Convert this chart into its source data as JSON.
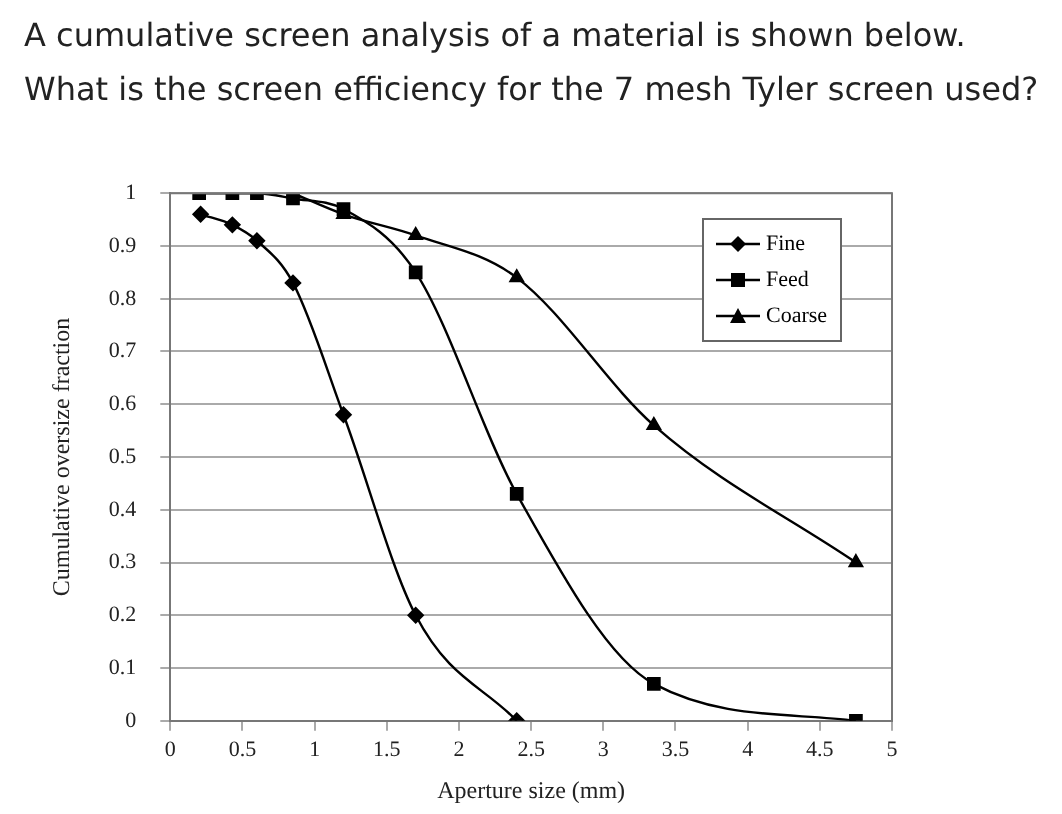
{
  "chart_data": {
    "type": "line",
    "title": "A cumulative screen analysis of a material is shown below. What is the screen efficiency for the 7 mesh Tyler screen used?",
    "xlabel": "Aperture size (mm)",
    "ylabel": "Cumulative oversize fraction",
    "xlim": [
      0,
      5
    ],
    "xticks": [
      0,
      0.5,
      1,
      1.5,
      2,
      2.5,
      3,
      3.5,
      4,
      4.5,
      5
    ],
    "ylim": [
      0,
      1
    ],
    "yticks": [
      0,
      0.1,
      0.2,
      0.3,
      0.4,
      0.5,
      0.6,
      0.7,
      0.8,
      0.9,
      1
    ],
    "grid": "y",
    "legend": "top right",
    "series": [
      {
        "name": "Fine",
        "color": "#000000",
        "marker": "diamond",
        "x": [
          0.21,
          0.43,
          0.6,
          0.85,
          1.2,
          1.7,
          2.4
        ],
        "values": [
          0.96,
          0.94,
          0.91,
          0.83,
          0.58,
          0.2,
          0
        ]
      },
      {
        "name": "Feed",
        "color": "#000000",
        "marker": "square",
        "x": [
          0.2,
          0.43,
          0.6,
          0.85,
          1.2,
          1.7,
          2.4,
          3.35,
          4.75
        ],
        "values": [
          1,
          1,
          1,
          0.99,
          0.97,
          0.85,
          0.43,
          0.07,
          0
        ]
      },
      {
        "name": "Coarse",
        "color": "#000000",
        "marker": "triangle",
        "x": [
          0.85,
          1.2,
          1.7,
          2.4,
          3.35,
          4.75
        ],
        "values": [
          1,
          0.96,
          0.92,
          0.84,
          0.56,
          0.3
        ]
      }
    ]
  }
}
